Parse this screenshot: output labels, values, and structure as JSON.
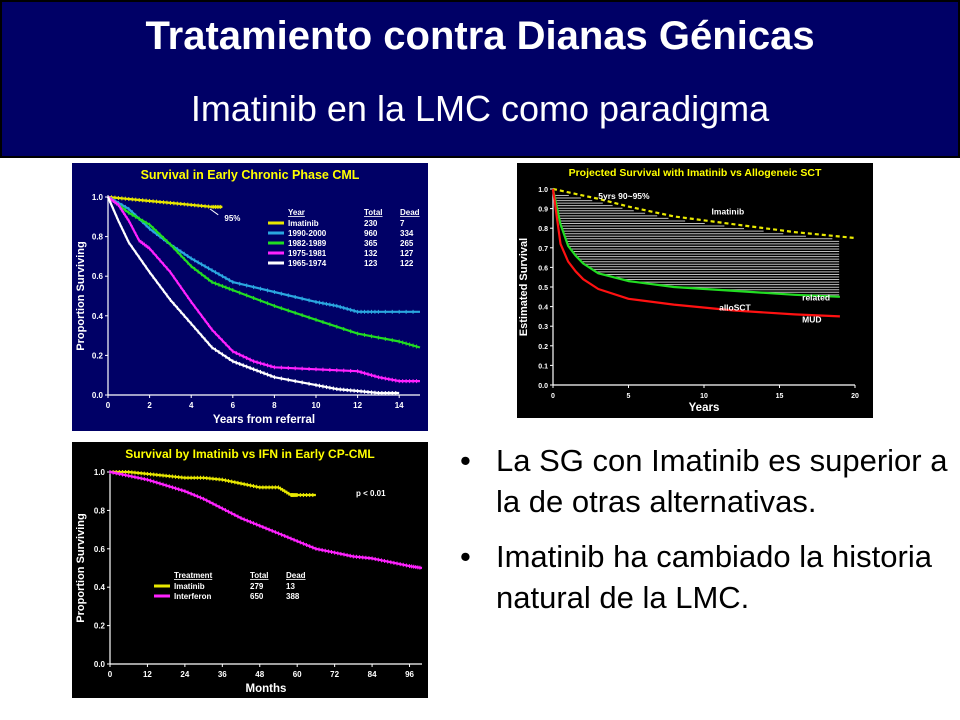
{
  "header": {
    "title": "Tratamiento contra Dianas Génicas",
    "subtitle": "Imatinib en la LMC como paradigma"
  },
  "bullets": [
    "La SG con Imatinib es superior a la de otras alternativas.",
    "Imatinib ha cambiado la historia natural de la LMC."
  ],
  "bullet_glyph": "•",
  "colors": {
    "header_bg": "#000066",
    "chart_bg_blue": "#000066",
    "chart_bg_black": "#000000",
    "title_yellow": "#ffff00",
    "axis_text": "#ffffff"
  },
  "chart_data": [
    {
      "type": "line",
      "title": "Survival in Early Chronic Phase CML",
      "xlabel": "Years from referral",
      "ylabel": "Proportion Surviving",
      "xlim": [
        0,
        15
      ],
      "ylim": [
        0,
        1.0
      ],
      "xticks": [
        "0",
        "2",
        "4",
        "6",
        "8",
        "10",
        "12",
        "14"
      ],
      "yticks": [
        "0.0",
        "0.2",
        "0.4",
        "0.6",
        "0.8",
        "1.0"
      ],
      "annotation": "95%",
      "legend": {
        "headers": [
          "Year",
          "Total",
          "Dead"
        ],
        "rows": [
          [
            "Imatinib",
            "230",
            "7"
          ],
          [
            "1990-2000",
            "960",
            "334"
          ],
          [
            "1982-1989",
            "365",
            "265"
          ],
          [
            "1975-1981",
            "132",
            "127"
          ],
          [
            "1965-1974",
            "123",
            "122"
          ]
        ]
      },
      "series": [
        {
          "name": "Imatinib",
          "color": "#e8e800",
          "x": [
            0,
            1,
            2,
            3,
            4,
            5,
            5.5
          ],
          "y": [
            1.0,
            0.99,
            0.98,
            0.97,
            0.96,
            0.95,
            0.95
          ]
        },
        {
          "name": "1990-2000",
          "color": "#2aa7e0",
          "x": [
            0,
            1,
            2,
            3,
            4,
            5,
            6,
            8,
            10,
            11,
            12,
            13,
            15
          ],
          "y": [
            1.0,
            0.94,
            0.84,
            0.76,
            0.69,
            0.63,
            0.57,
            0.52,
            0.47,
            0.45,
            0.42,
            0.42,
            0.42
          ]
        },
        {
          "name": "1982-1989",
          "color": "#22dd22",
          "x": [
            0,
            1,
            2,
            3,
            4,
            5,
            6,
            8,
            10,
            12,
            14,
            15
          ],
          "y": [
            1.0,
            0.92,
            0.86,
            0.76,
            0.65,
            0.57,
            0.53,
            0.45,
            0.38,
            0.31,
            0.27,
            0.24
          ]
        },
        {
          "name": "1975-1981",
          "color": "#ff22ff",
          "x": [
            0,
            0.5,
            1,
            1.5,
            2,
            3,
            4,
            5,
            6,
            7,
            8,
            10,
            12,
            13,
            14,
            15
          ],
          "y": [
            1.0,
            0.96,
            0.88,
            0.78,
            0.74,
            0.62,
            0.47,
            0.33,
            0.22,
            0.17,
            0.14,
            0.13,
            0.12,
            0.09,
            0.07,
            0.07
          ]
        },
        {
          "name": "1965-1974",
          "color": "#ffffff",
          "x": [
            0,
            0.5,
            1,
            2,
            3,
            4,
            5,
            6,
            7,
            8,
            10,
            11,
            12,
            13,
            14
          ],
          "y": [
            1.0,
            0.88,
            0.77,
            0.62,
            0.48,
            0.36,
            0.24,
            0.17,
            0.13,
            0.09,
            0.05,
            0.03,
            0.02,
            0.01,
            0.01
          ]
        }
      ]
    },
    {
      "type": "line",
      "title": "Projected Survival with Imatinib vs Allogeneic SCT",
      "xlabel": "Years",
      "ylabel": "Estimated  Survival",
      "xlim": [
        0,
        20
      ],
      "ylim": [
        0,
        1.0
      ],
      "xticks": [
        "0",
        "5",
        "10",
        "15",
        "20"
      ],
      "yticks": [
        "0.0",
        "0.1",
        "0.2",
        "0.3",
        "0.4",
        "0.5",
        "0.6",
        "0.7",
        "0.8",
        "0.9",
        "1.0"
      ],
      "annotations": [
        "5yrs 90~95%",
        "Imatinib",
        "related",
        "alloSCT",
        "MUD"
      ],
      "series": [
        {
          "name": "Imatinib",
          "color": "#e8e800",
          "x": [
            0,
            3,
            5,
            8,
            12,
            16,
            20
          ],
          "y": [
            1.0,
            0.95,
            0.91,
            0.86,
            0.82,
            0.78,
            0.75
          ]
        },
        {
          "name": "related",
          "color": "#22dd22",
          "x": [
            0,
            0.5,
            1,
            1.5,
            2,
            3,
            5,
            8,
            12,
            16,
            19
          ],
          "y": [
            1.0,
            0.82,
            0.71,
            0.66,
            0.62,
            0.57,
            0.53,
            0.5,
            0.48,
            0.46,
            0.45
          ]
        },
        {
          "name": "MUD",
          "color": "#ff1111",
          "x": [
            0,
            0.5,
            1,
            1.5,
            2,
            3,
            5,
            8,
            12,
            16,
            19
          ],
          "y": [
            1.0,
            0.72,
            0.63,
            0.58,
            0.54,
            0.49,
            0.44,
            0.41,
            0.38,
            0.36,
            0.35
          ]
        }
      ]
    },
    {
      "type": "line",
      "title": "Survival by Imatinib vs IFN in Early CP-CML",
      "xlabel": "Months",
      "ylabel": "Proportion Surviving",
      "xlim": [
        0,
        100
      ],
      "ylim": [
        0,
        1.0
      ],
      "xticks": [
        "0",
        "12",
        "24",
        "36",
        "48",
        "60",
        "72",
        "84",
        "96"
      ],
      "yticks": [
        "0.0",
        "0.2",
        "0.4",
        "0.6",
        "0.8",
        "1.0"
      ],
      "annotation": "p < 0.01",
      "legend": {
        "headers": [
          "Treatment",
          "Total",
          "Dead"
        ],
        "rows": [
          [
            "Imatinib",
            "279",
            "13"
          ],
          [
            "Interferon",
            "650",
            "388"
          ]
        ]
      },
      "series": [
        {
          "name": "Imatinib",
          "color": "#e8e800",
          "x": [
            0,
            6,
            12,
            18,
            24,
            30,
            36,
            42,
            48,
            54,
            58,
            60,
            66
          ],
          "y": [
            1.0,
            1.0,
            0.99,
            0.98,
            0.97,
            0.97,
            0.96,
            0.94,
            0.92,
            0.92,
            0.88,
            0.88,
            0.88
          ]
        },
        {
          "name": "Interferon",
          "color": "#ff22ff",
          "x": [
            0,
            6,
            12,
            18,
            24,
            30,
            36,
            42,
            48,
            54,
            60,
            66,
            72,
            78,
            84,
            90,
            96,
            100
          ],
          "y": [
            1.0,
            0.98,
            0.96,
            0.93,
            0.9,
            0.86,
            0.81,
            0.76,
            0.72,
            0.68,
            0.64,
            0.6,
            0.58,
            0.56,
            0.55,
            0.53,
            0.51,
            0.5
          ]
        }
      ]
    }
  ]
}
